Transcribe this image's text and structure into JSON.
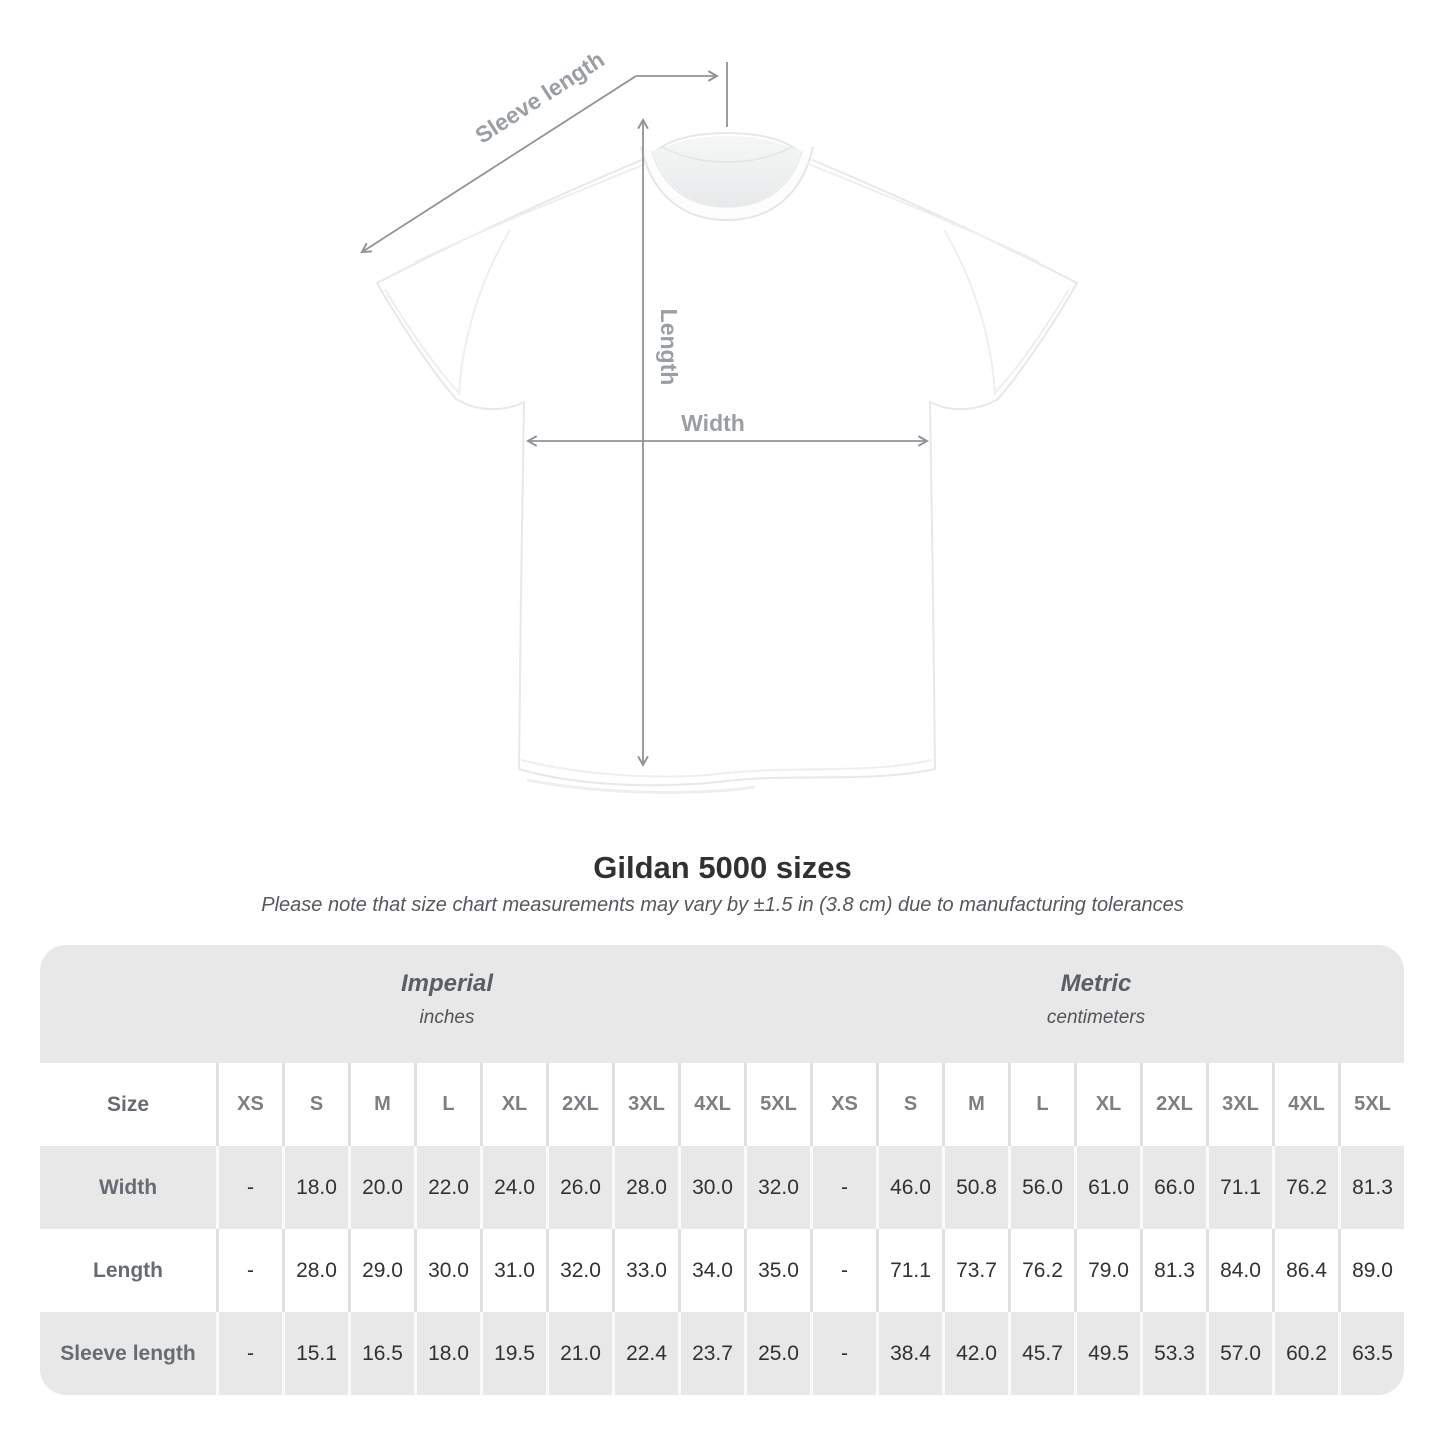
{
  "diagram": {
    "labels": {
      "sleeve_length": "Sleeve length",
      "length": "Length",
      "width": "Width"
    },
    "arrow_color": "#8f9499",
    "label_color": "#9a9fa4"
  },
  "title": "Gildan 5000 sizes",
  "subtitle": "Please note that size chart measurements may vary by ±1.5 in (3.8 cm) due to manufacturing tolerances",
  "table": {
    "unit_groups": [
      {
        "label": "Imperial",
        "sublabel": "inches"
      },
      {
        "label": "Metric",
        "sublabel": "centimeters"
      }
    ],
    "size_col_header": "Size",
    "sizes": [
      "XS",
      "S",
      "M",
      "L",
      "XL",
      "2XL",
      "3XL",
      "4XL",
      "5XL"
    ],
    "rows": [
      {
        "label": "Width",
        "imperial": [
          "-",
          "18.0",
          "20.0",
          "22.0",
          "24.0",
          "26.0",
          "28.0",
          "30.0",
          "32.0"
        ],
        "metric": [
          "-",
          "46.0",
          "50.8",
          "56.0",
          "61.0",
          "66.0",
          "71.1",
          "76.2",
          "81.3"
        ]
      },
      {
        "label": "Length",
        "imperial": [
          "-",
          "28.0",
          "29.0",
          "30.0",
          "31.0",
          "32.0",
          "33.0",
          "34.0",
          "35.0"
        ],
        "metric": [
          "-",
          "71.1",
          "73.7",
          "76.2",
          "79.0",
          "81.3",
          "84.0",
          "86.4",
          "89.0"
        ]
      },
      {
        "label": "Sleeve length",
        "imperial": [
          "-",
          "15.1",
          "16.5",
          "18.0",
          "19.5",
          "21.0",
          "22.4",
          "23.7",
          "25.0"
        ],
        "metric": [
          "-",
          "38.4",
          "42.0",
          "45.7",
          "49.5",
          "53.3",
          "57.0",
          "60.2",
          "63.5"
        ]
      }
    ],
    "colors": {
      "band_bg": "#e8e8e8",
      "row_alt_bg": "#e8e8e8",
      "value_text": "#313233"
    }
  }
}
